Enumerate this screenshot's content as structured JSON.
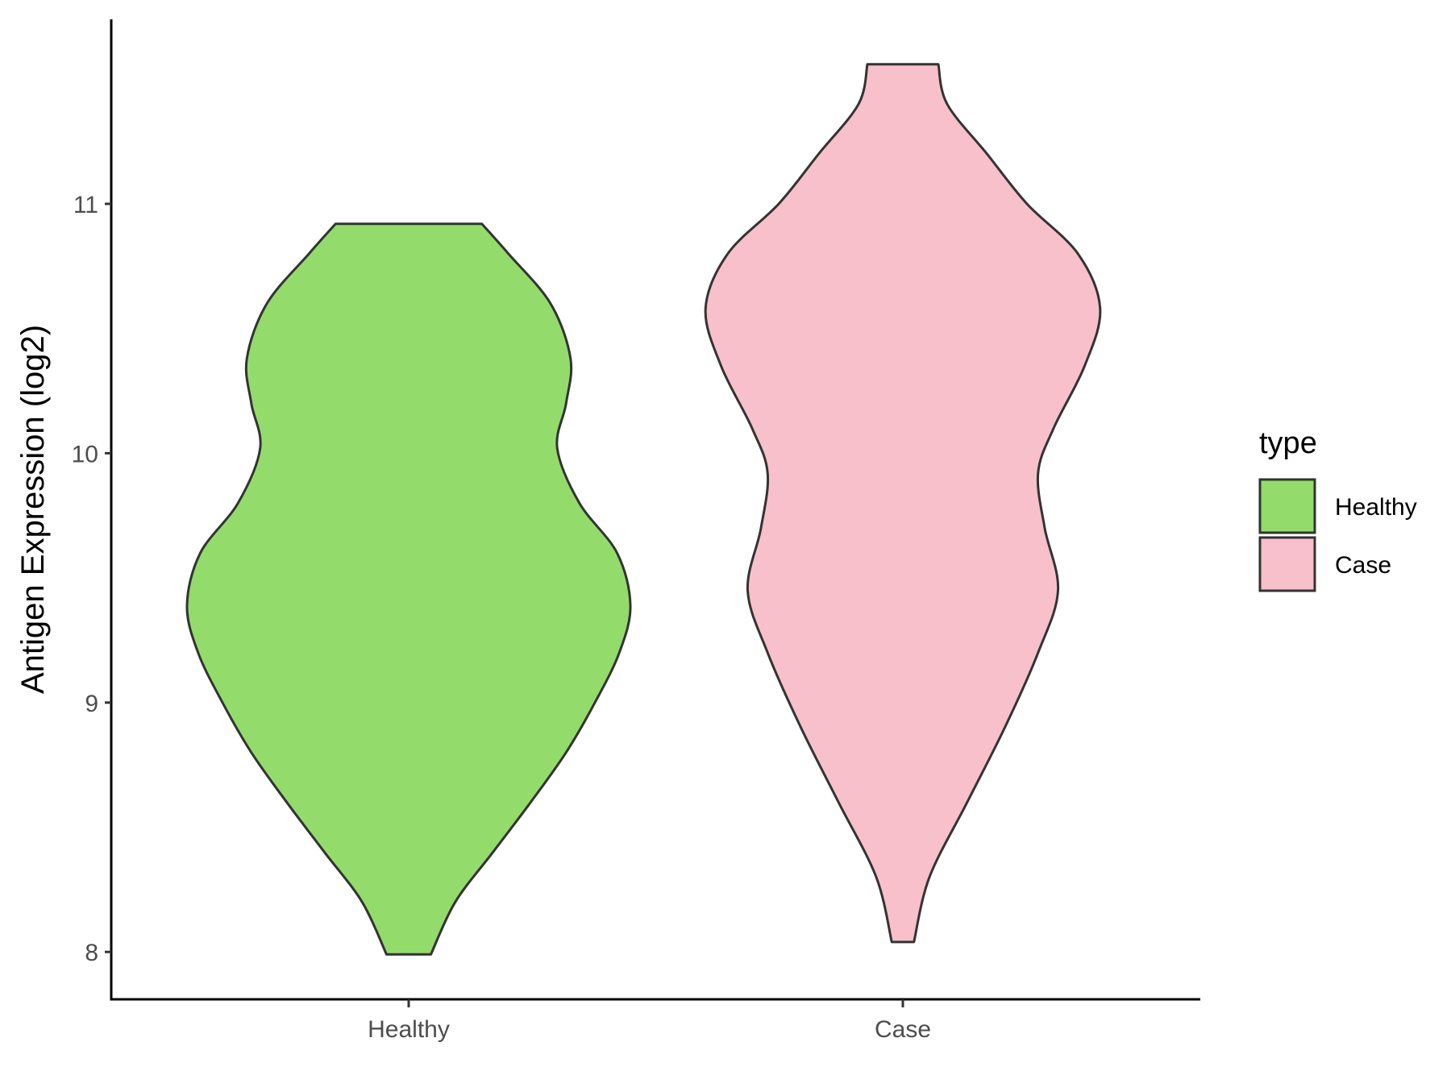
{
  "chart_data": {
    "type": "violin",
    "xlabel": "",
    "ylabel": "Antigen Expression (log2)",
    "categories": [
      "Healthy",
      "Case"
    ],
    "ylim": [
      7.81,
      11.74
    ],
    "yticks": [
      8,
      9,
      10,
      11
    ],
    "grid": false,
    "legend": {
      "title": "type",
      "position": "right",
      "entries": [
        {
          "label": "Healthy",
          "color": "#93dc6b"
        },
        {
          "label": "Case",
          "color": "#f7c0cb"
        }
      ]
    },
    "outline_color": "#333333",
    "series": [
      {
        "name": "Healthy",
        "color": "#93dc6b",
        "profile": [
          {
            "y": 7.99,
            "width": 0.1
          },
          {
            "y": 8.2,
            "width": 0.21
          },
          {
            "y": 8.4,
            "width": 0.38
          },
          {
            "y": 8.6,
            "width": 0.55
          },
          {
            "y": 8.8,
            "width": 0.71
          },
          {
            "y": 9.0,
            "width": 0.84
          },
          {
            "y": 9.2,
            "width": 0.95
          },
          {
            "y": 9.39,
            "width": 1.0
          },
          {
            "y": 9.6,
            "width": 0.94
          },
          {
            "y": 9.8,
            "width": 0.77
          },
          {
            "y": 10.02,
            "width": 0.67
          },
          {
            "y": 10.2,
            "width": 0.71
          },
          {
            "y": 10.38,
            "width": 0.73
          },
          {
            "y": 10.6,
            "width": 0.64
          },
          {
            "y": 10.8,
            "width": 0.45
          },
          {
            "y": 10.92,
            "width": 0.33
          }
        ]
      },
      {
        "name": "Case",
        "color": "#f7c0cb",
        "profile": [
          {
            "y": 8.04,
            "width": 0.05
          },
          {
            "y": 8.3,
            "width": 0.12
          },
          {
            "y": 8.6,
            "width": 0.29
          },
          {
            "y": 8.9,
            "width": 0.46
          },
          {
            "y": 9.2,
            "width": 0.61
          },
          {
            "y": 9.45,
            "width": 0.7
          },
          {
            "y": 9.7,
            "width": 0.64
          },
          {
            "y": 9.92,
            "width": 0.61
          },
          {
            "y": 10.1,
            "width": 0.68
          },
          {
            "y": 10.35,
            "width": 0.82
          },
          {
            "y": 10.58,
            "width": 0.89
          },
          {
            "y": 10.8,
            "width": 0.79
          },
          {
            "y": 11.0,
            "width": 0.56
          },
          {
            "y": 11.2,
            "width": 0.38
          },
          {
            "y": 11.4,
            "width": 0.2
          },
          {
            "y": 11.56,
            "width": 0.16
          }
        ]
      }
    ]
  }
}
